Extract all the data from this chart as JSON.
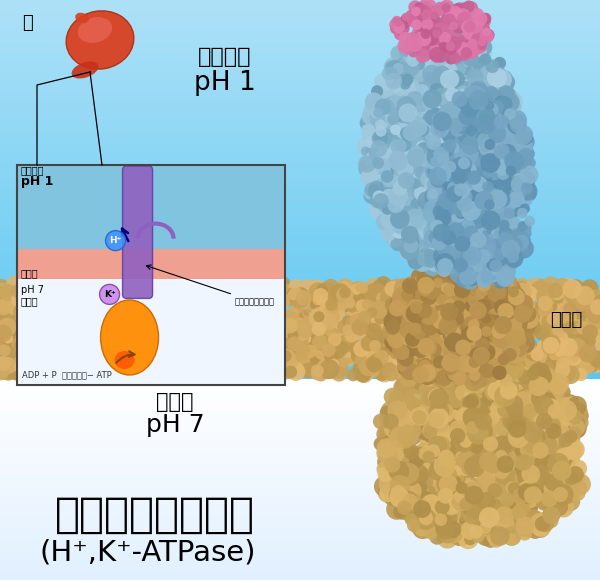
{
  "title_line1": "胃プロトンポンプ",
  "title_line2": "(H⁺,K⁺-ATPase)",
  "label_stomach_interior": "胃の内部",
  "label_ph1": "pH 1",
  "label_intracellular": "細胞内",
  "label_ph7": "pH 7",
  "label_membrane": "細胞膜",
  "label_stomach": "胃",
  "inset_label_interior": "胃の内部",
  "inset_label_ph1": "pH 1",
  "inset_label_membrane": "細胞膜",
  "inset_label_ph7": "pH 7",
  "inset_label_intracell": "細胞内",
  "inset_label_pump": "胃プロトンポンプ",
  "inset_label_atp": "ADP + P  エネルギー− ATP",
  "bg_sky_top": "#5CC8F0",
  "bg_sky_bottom": "#A8DFF5",
  "bg_lower_top": "#C8E8F5",
  "bg_lower_bottom": "#FFFFFF",
  "membrane_main_color": "#C8A060",
  "protein_tan1": "#C8A060",
  "protein_tan2": "#D4AE78",
  "protein_tan3": "#B89050",
  "protein_blue1": "#7AAFC5",
  "protein_blue2": "#90BDD0",
  "protein_blue3": "#6090A8",
  "protein_pink1": "#D070A0",
  "protein_pink2": "#E090B8",
  "inset_blue": "#80C0E0",
  "inset_salmon": "#F0A090",
  "inset_white": "#EEF5FF",
  "pump_orange": "#FF8C00",
  "pump_purple": "#8860B0",
  "stomach_red": "#D84020",
  "stomach_light": "#E86040"
}
